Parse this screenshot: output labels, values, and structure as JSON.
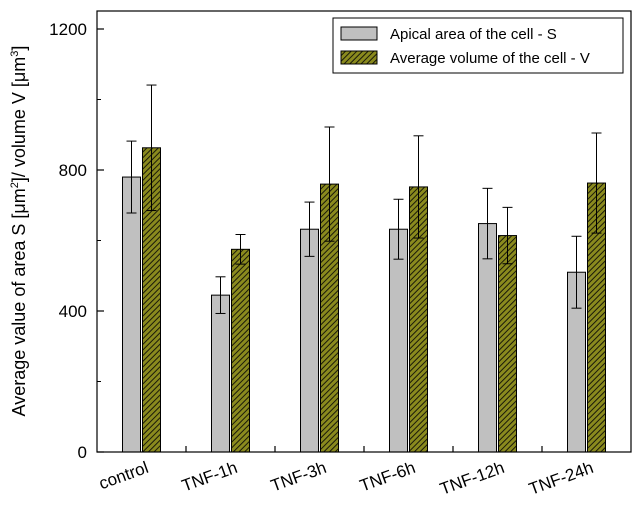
{
  "chart_data": {
    "type": "bar",
    "categories": [
      "control",
      "TNF-1h",
      "TNF-3h",
      "TNF-6h",
      "TNF-12h",
      "TNF-24h"
    ],
    "series": [
      {
        "name": "Apical area of the cell - S",
        "values": [
          780,
          445,
          632,
          632,
          648,
          510
        ],
        "errors": [
          102,
          52,
          77,
          85,
          100,
          102
        ],
        "color": "#c0c0c0",
        "pattern": "solid"
      },
      {
        "name": "Average volume of the cell - V",
        "values": [
          863,
          575,
          760,
          752,
          614,
          763
        ],
        "errors": [
          178,
          42,
          162,
          145,
          80,
          142
        ],
        "color": "#8a8a1e",
        "pattern": "hatched"
      }
    ],
    "ylabel_parts": {
      "a": "Average value of area S [",
      "b": "μm",
      "c": "2",
      "d": "]/ volume V [",
      "e": "μm",
      "f": "3",
      "g": "]"
    },
    "ylim": [
      0,
      1200
    ],
    "yticks": [
      "0",
      "400",
      "800",
      "1200"
    ],
    "legend_position": "top-right",
    "grid": false
  }
}
